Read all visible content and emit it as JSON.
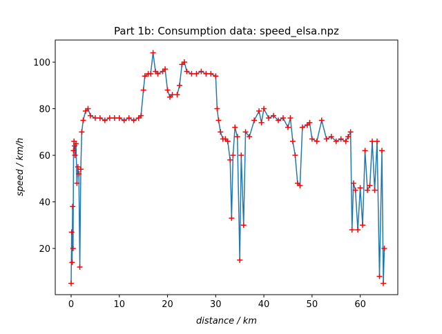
{
  "chart_data": {
    "type": "line",
    "title": "Part 1b: Consumption data: speed_elsa.npz",
    "xlabel": "distance / km",
    "ylabel": "speed / km/h",
    "x": [
      0.0,
      0.1,
      0.2,
      0.3,
      0.4,
      0.5,
      0.6,
      0.7,
      0.8,
      1.0,
      1.2,
      1.4,
      1.6,
      1.8,
      2.0,
      2.2,
      2.5,
      3.0,
      3.5,
      4.0,
      5,
      6,
      7,
      8,
      9,
      10,
      11,
      12,
      13,
      14,
      14.5,
      15,
      15.3,
      16,
      16.5,
      17,
      17.5,
      18,
      19,
      19.5,
      20,
      20.5,
      21,
      22,
      22.5,
      23,
      23.5,
      24,
      25,
      26,
      27,
      28,
      29,
      30,
      30.3,
      30.6,
      31,
      31.5,
      32,
      32.5,
      33,
      33.3,
      33.6,
      34,
      34.5,
      35,
      35.3,
      35.8,
      36.2,
      37,
      38,
      39,
      39.5,
      40,
      41,
      42,
      43,
      44,
      45,
      45.5,
      46,
      46.5,
      47,
      47.5,
      48,
      49,
      49.5,
      50,
      51,
      52,
      53,
      54,
      55,
      56,
      57,
      57.5,
      58,
      58.3,
      58.6,
      59,
      59.5,
      60,
      60.5,
      61,
      61.5,
      62,
      62.5,
      63,
      63.5,
      64,
      64.5,
      64.8,
      65
    ],
    "series": [
      {
        "color": "#1f77b4",
        "marker": "+",
        "marker_color": "#ff0000",
        "values": [
          5,
          27,
          14,
          38,
          20,
          62,
          66,
          64,
          60,
          65,
          48,
          55,
          52,
          12,
          54,
          70,
          75,
          79,
          80,
          77,
          76,
          76,
          75,
          76,
          76,
          76,
          75,
          76,
          75,
          76,
          77,
          88,
          94,
          95,
          95,
          104,
          96,
          95,
          96,
          97,
          88,
          85,
          86,
          86,
          90,
          99,
          100,
          96,
          95,
          95,
          96,
          95,
          95,
          94,
          80,
          75,
          70,
          67,
          67,
          66,
          58,
          33,
          60,
          72,
          68,
          15,
          60,
          30,
          70,
          68,
          75,
          79,
          74,
          80,
          76,
          77,
          75,
          76,
          72,
          76,
          66,
          60,
          48,
          47,
          72,
          73,
          74,
          67,
          66,
          75,
          67,
          68,
          66,
          67,
          66,
          68,
          70,
          28,
          48,
          45,
          28,
          46,
          30,
          62,
          45,
          47,
          66,
          45,
          66,
          8,
          62,
          5,
          20
        ]
      }
    ],
    "xlim": [
      -3.3,
      67.8
    ],
    "ylim": [
      0.15,
      109.5
    ],
    "xticks": [
      0,
      10,
      20,
      30,
      40,
      50,
      60
    ],
    "yticks": [
      20,
      40,
      60,
      80,
      100
    ]
  }
}
